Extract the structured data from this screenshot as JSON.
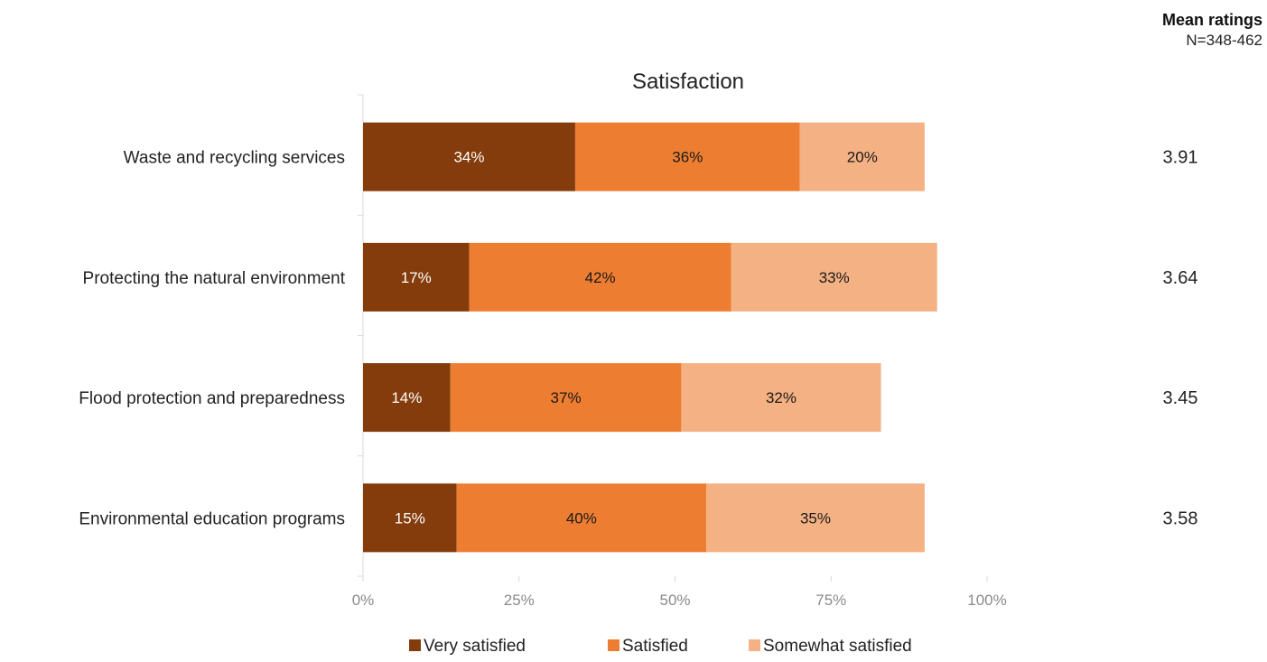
{
  "mean_panel": {
    "heading": "Mean ratings",
    "n": "N=348-462",
    "values": [
      "3.91",
      "3.64",
      "3.45",
      "3.58"
    ]
  },
  "chart_data": {
    "type": "bar",
    "orientation": "horizontal",
    "stacked": true,
    "title": "Satisfaction",
    "categories": [
      "Waste and recycling services",
      "Protecting the natural environment",
      "Flood protection and preparedness",
      "Environmental education programs"
    ],
    "series": [
      {
        "name": "Very satisfied",
        "color": "#843c0c",
        "values": [
          34,
          17,
          14,
          15
        ],
        "labels": [
          "34%",
          "17%",
          "14%",
          "15%"
        ]
      },
      {
        "name": "Satisfied",
        "color": "#ed7d31",
        "values": [
          36,
          42,
          37,
          40
        ],
        "labels": [
          "36%",
          "42%",
          "37%",
          "40%"
        ]
      },
      {
        "name": "Somewhat satisfied",
        "color": "#f4b183",
        "values": [
          20,
          33,
          32,
          35
        ],
        "labels": [
          "20%",
          "33%",
          "32%",
          "35%"
        ]
      }
    ],
    "xlim": [
      0,
      100
    ],
    "xticks": [
      "0%",
      "25%",
      "50%",
      "75%",
      "100%"
    ],
    "grid": false,
    "legend": "bottom"
  }
}
